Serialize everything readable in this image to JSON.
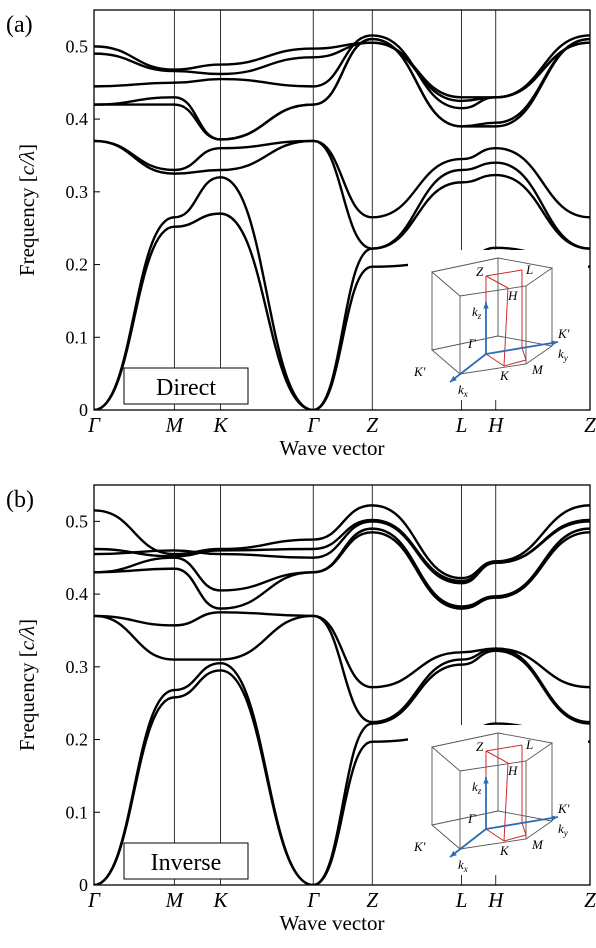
{
  "chart_data": [
    {
      "type": "line",
      "panel_label": "(a)",
      "box_label": "Direct",
      "xlabel": "Wave vector",
      "ylabel_text": "Frequency [",
      "ylabel_unit": "c/λ",
      "ylabel_close": "]",
      "ylim": [
        0,
        0.55
      ],
      "yticks": [
        "0",
        "0.1",
        "0.2",
        "0.3",
        "0.4",
        "0.5"
      ],
      "ytick_values": [
        0,
        0.1,
        0.2,
        0.3,
        0.4,
        0.5
      ],
      "kpoints": [
        "Γ",
        "M",
        "K",
        "Γ",
        "Z",
        "L",
        "H",
        "Z"
      ],
      "kpoint_positions": [
        0,
        0.162,
        0.255,
        0.442,
        0.561,
        0.741,
        0.81,
        1.0
      ],
      "series": [
        {
          "x": [
            0,
            0.162,
            0.255,
            0.442,
            0.561,
            0.741,
            0.81,
            1.0
          ],
          "y": [
            0,
            0.252,
            0.27,
            0,
            0.197,
            0.205,
            0.223,
            0.197
          ]
        },
        {
          "x": [
            0,
            0.162,
            0.255,
            0.442,
            0.561,
            0.741,
            0.81,
            1.0
          ],
          "y": [
            0,
            0.265,
            0.32,
            0,
            0.222,
            0.313,
            0.323,
            0.222
          ]
        },
        {
          "x": [
            0,
            0.162,
            0.255,
            0.442,
            0.561,
            0.741,
            0.81,
            1.0
          ],
          "y": [
            0.37,
            0.325,
            0.33,
            0.37,
            0.222,
            0.33,
            0.34,
            0.222
          ]
        },
        {
          "x": [
            0,
            0.162,
            0.255,
            0.442,
            0.561,
            0.741,
            0.81,
            1.0
          ],
          "y": [
            0.37,
            0.33,
            0.36,
            0.37,
            0.265,
            0.345,
            0.36,
            0.265
          ]
        },
        {
          "x": [
            0,
            0.162,
            0.255,
            0.442,
            0.561,
            0.741,
            0.81,
            1.0
          ],
          "y": [
            0.42,
            0.43,
            0.372,
            0.42,
            0.51,
            0.39,
            0.39,
            0.51
          ]
        },
        {
          "x": [
            0,
            0.162,
            0.255,
            0.442,
            0.561,
            0.741,
            0.81,
            1.0
          ],
          "y": [
            0.42,
            0.42,
            0.372,
            0.42,
            0.51,
            0.39,
            0.395,
            0.51
          ]
        },
        {
          "x": [
            0,
            0.162,
            0.255,
            0.442,
            0.561,
            0.741,
            0.81,
            1.0
          ],
          "y": [
            0.445,
            0.45,
            0.455,
            0.445,
            0.515,
            0.415,
            0.43,
            0.515
          ]
        },
        {
          "x": [
            0,
            0.162,
            0.255,
            0.442,
            0.561,
            0.741,
            0.81,
            1.0
          ],
          "y": [
            0.49,
            0.466,
            0.462,
            0.485,
            0.505,
            0.425,
            0.43,
            0.505
          ]
        },
        {
          "x": [
            0,
            0.162,
            0.255,
            0.442,
            0.561,
            0.741,
            0.81,
            1.0
          ],
          "y": [
            0.5,
            0.468,
            0.475,
            0.497,
            0.505,
            0.43,
            0.43,
            0.505
          ]
        }
      ]
    },
    {
      "type": "line",
      "panel_label": "(b)",
      "box_label": "Inverse",
      "xlabel": "Wave vector",
      "ylabel_text": "Frequency [",
      "ylabel_unit": "c/λ",
      "ylabel_close": "]",
      "ylim": [
        0,
        0.55
      ],
      "yticks": [
        "0",
        "0.1",
        "0.2",
        "0.3",
        "0.4",
        "0.5"
      ],
      "ytick_values": [
        0,
        0.1,
        0.2,
        0.3,
        0.4,
        0.5
      ],
      "kpoints": [
        "Γ",
        "M",
        "K",
        "Γ",
        "Z",
        "L",
        "H",
        "Z"
      ],
      "kpoint_positions": [
        0,
        0.162,
        0.255,
        0.442,
        0.561,
        0.741,
        0.81,
        1.0
      ],
      "series": [
        {
          "x": [
            0,
            0.162,
            0.255,
            0.442,
            0.561,
            0.741,
            0.81,
            1.0
          ],
          "y": [
            0,
            0.258,
            0.295,
            0,
            0.197,
            0.207,
            0.222,
            0.197
          ]
        },
        {
          "x": [
            0,
            0.162,
            0.255,
            0.442,
            0.561,
            0.741,
            0.81,
            1.0
          ],
          "y": [
            0,
            0.268,
            0.305,
            0,
            0.222,
            0.303,
            0.322,
            0.222
          ]
        },
        {
          "x": [
            0,
            0.162,
            0.255,
            0.442,
            0.561,
            0.741,
            0.81,
            1.0
          ],
          "y": [
            0.37,
            0.31,
            0.31,
            0.37,
            0.224,
            0.31,
            0.325,
            0.224
          ]
        },
        {
          "x": [
            0,
            0.162,
            0.255,
            0.442,
            0.561,
            0.741,
            0.81,
            1.0
          ],
          "y": [
            0.37,
            0.357,
            0.375,
            0.37,
            0.272,
            0.32,
            0.325,
            0.272
          ]
        },
        {
          "x": [
            0,
            0.162,
            0.255,
            0.442,
            0.561,
            0.741,
            0.81,
            1.0
          ],
          "y": [
            0.43,
            0.435,
            0.38,
            0.43,
            0.485,
            0.38,
            0.395,
            0.485
          ]
        },
        {
          "x": [
            0,
            0.162,
            0.255,
            0.442,
            0.561,
            0.741,
            0.81,
            1.0
          ],
          "y": [
            0.43,
            0.45,
            0.405,
            0.43,
            0.49,
            0.383,
            0.397,
            0.49
          ]
        },
        {
          "x": [
            0,
            0.162,
            0.255,
            0.442,
            0.561,
            0.741,
            0.81,
            1.0
          ],
          "y": [
            0.455,
            0.46,
            0.455,
            0.45,
            0.5,
            0.415,
            0.443,
            0.5
          ]
        },
        {
          "x": [
            0,
            0.162,
            0.255,
            0.442,
            0.561,
            0.741,
            0.81,
            1.0
          ],
          "y": [
            0.462,
            0.452,
            0.46,
            0.462,
            0.502,
            0.418,
            0.443,
            0.502
          ]
        },
        {
          "x": [
            0,
            0.162,
            0.255,
            0.442,
            0.561,
            0.741,
            0.81,
            1.0
          ],
          "y": [
            0.515,
            0.455,
            0.462,
            0.475,
            0.522,
            0.422,
            0.445,
            0.522
          ]
        }
      ]
    }
  ],
  "inset": {
    "labels_red": [
      "Z",
      "L",
      "H",
      "Γ",
      "K",
      "M",
      "K′",
      "K′"
    ],
    "labels_blue": [
      "k",
      "z",
      "k",
      "y",
      "k",
      "x"
    ],
    "colors": {
      "red": "#d02a2a",
      "blue": "#2e6db5",
      "gray": "#555555"
    }
  }
}
